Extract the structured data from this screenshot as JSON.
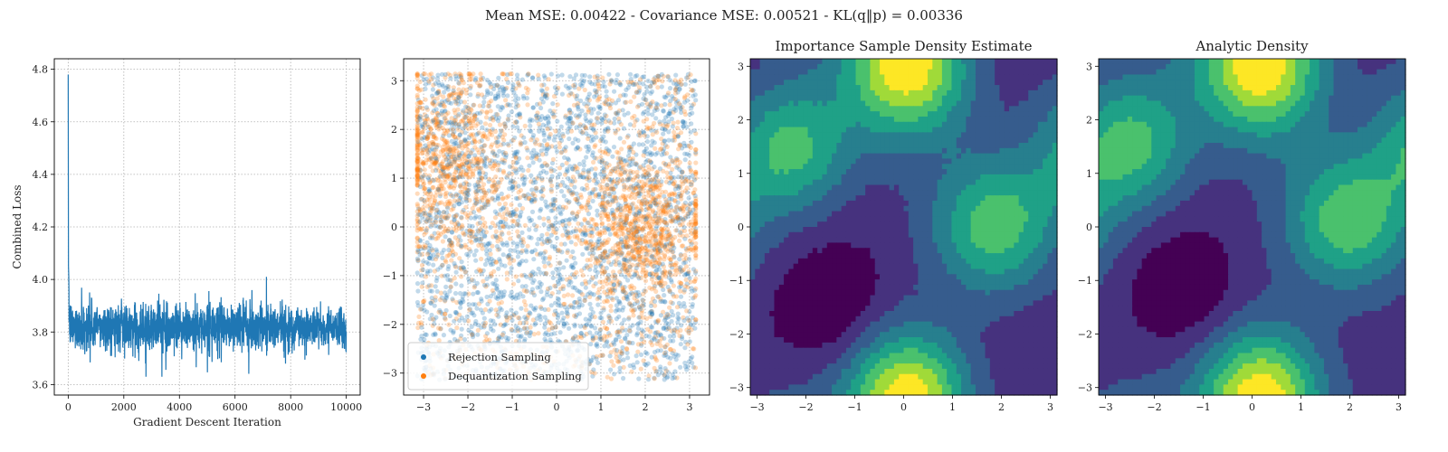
{
  "figure": {
    "suptitle": "Mean MSE: 0.00422 - Covariance MSE: 0.00521 - KL(q‖p) = 0.00336"
  },
  "colors": {
    "loss_line": "#1f77b4",
    "rejection": "#1f77b4",
    "dequantization": "#ff7f0e",
    "grid": "#b0b0b0",
    "viridis_levels": [
      "#440154",
      "#46327e",
      "#365c8d",
      "#277f8e",
      "#1fa187",
      "#4ac16d",
      "#a0da39",
      "#fde725"
    ]
  },
  "chart_data": [
    {
      "id": "loss",
      "type": "line",
      "title": "",
      "xlabel": "Gradient Descent Iteration",
      "ylabel": "Combined Loss",
      "xlim": [
        -500,
        10500
      ],
      "ylim": [
        3.56,
        4.84
      ],
      "xticks": [
        0,
        2000,
        4000,
        6000,
        8000,
        10000
      ],
      "yticks": [
        3.6,
        3.8,
        4.0,
        4.2,
        4.4,
        4.6,
        4.8
      ],
      "grid": true,
      "series": [
        {
          "x": [
            0,
            10,
            20,
            40,
            60,
            80,
            100,
            200,
            400,
            700,
            1000,
            1500,
            1700,
            2000,
            3000,
            4000,
            5000,
            6000,
            7000,
            8000,
            9000,
            10000
          ],
          "y": [
            4.78,
            4.05,
            3.95,
            3.85,
            3.82,
            3.83,
            3.82,
            3.82,
            3.82,
            3.82,
            3.82,
            3.82,
            3.82,
            3.82,
            3.82,
            3.82,
            3.82,
            3.82,
            3.82,
            3.82,
            3.82,
            3.82
          ],
          "noise_band": [
            3.63,
            4.01
          ]
        }
      ]
    },
    {
      "id": "samples",
      "type": "scatter",
      "title": "",
      "xlim": [
        -3.45,
        3.45
      ],
      "ylim": [
        -3.45,
        3.45
      ],
      "xticks": [
        -3,
        -2,
        -1,
        0,
        1,
        2,
        3
      ],
      "yticks": [
        -3,
        -2,
        -1,
        0,
        1,
        2,
        3
      ],
      "grid": true,
      "legend_position": "lower-left",
      "series": [
        {
          "name": "Rejection Sampling",
          "points_approx": 2500,
          "range": [
            -3.14,
            3.14
          ]
        },
        {
          "name": "Dequantization Sampling",
          "points_approx": 2500,
          "range": [
            -3.14,
            3.14
          ]
        }
      ]
    },
    {
      "id": "estimate",
      "type": "heatmap",
      "title": "Importance Sample Density Estimate",
      "xlim": [
        -3.14,
        3.14
      ],
      "ylim": [
        -3.14,
        3.14
      ],
      "xticks": [
        -3,
        -2,
        -1,
        0,
        1,
        2,
        3
      ],
      "yticks": [
        -3,
        -2,
        -1,
        0,
        1,
        2,
        3
      ],
      "levels": 8,
      "density_peaks": [
        [
          -2.3,
          1.4,
          1.0
        ],
        [
          1.9,
          0.0,
          1.0
        ],
        [
          0.1,
          2.8,
          0.9
        ],
        [
          0.1,
          -3.0,
          0.8
        ]
      ],
      "density_minimum": [
        -1.5,
        -1.6
      ]
    },
    {
      "id": "analytic",
      "type": "heatmap",
      "title": "Analytic Density",
      "xlim": [
        -3.14,
        3.14
      ],
      "ylim": [
        -3.14,
        3.14
      ],
      "xticks": [
        -3,
        -2,
        -1,
        0,
        1,
        2,
        3
      ],
      "yticks": [
        -3,
        -2,
        -1,
        0,
        1,
        2,
        3
      ],
      "levels": 8,
      "density_peaks": [
        [
          -2.5,
          1.5,
          1.0
        ],
        [
          2.0,
          0.1,
          1.0
        ],
        [
          0.2,
          2.8,
          0.9
        ],
        [
          0.2,
          -3.0,
          0.8
        ]
      ],
      "density_minimum": [
        -1.4,
        -1.3
      ]
    }
  ]
}
